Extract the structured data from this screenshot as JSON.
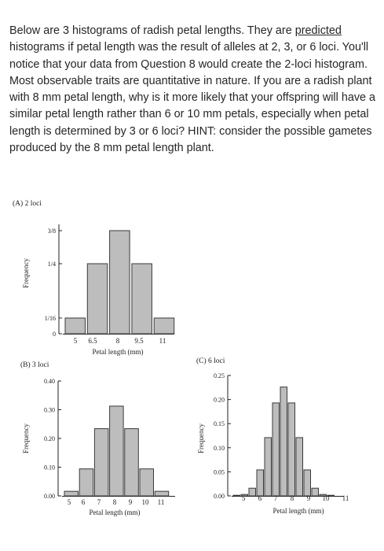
{
  "question": {
    "before": "Below are 3 histograms of radish petal lengths. They are ",
    "underlined": "predicted",
    "after": " histograms if petal length was the result of alleles at 2, 3, or 6 loci. You'll notice that your data from Question 8 would create the 2-loci histogram. Most observable traits are quantitative in nature. If you are a radish plant with 8 mm petal length, why is it more likely that your offspring will have a similar petal length rather than 6 or 10 mm petals, especially when petal length is determined by 3 or 6 loci? HINT: consider the possible gametes produced by the 8 mm petal length plant."
  },
  "chart_data": [
    {
      "type": "bar",
      "title": "(A) 2 loci",
      "ylabel": "Frequency",
      "xlabel": "Petal length (mm)",
      "x": [
        5,
        6.5,
        8,
        9.5,
        11
      ],
      "values": [
        0.0625,
        0.25,
        0.375,
        0.25,
        0.0625
      ],
      "xticks": [
        "5",
        "6.5",
        "8",
        "9.5",
        "11"
      ],
      "yticks": [
        {
          "value": 0,
          "label": "0"
        },
        {
          "value": 0.0625,
          "label": "1/16"
        },
        {
          "value": 0.25,
          "label": "1/4"
        },
        {
          "value": 0.375,
          "label": "3/8"
        }
      ],
      "ylim": [
        0,
        0.4
      ]
    },
    {
      "type": "bar",
      "title": "(B) 3 loci",
      "ylabel": "Frequency",
      "xlabel": "Petal length (mm)",
      "x": [
        5,
        6,
        7,
        8,
        9,
        10,
        11
      ],
      "values": [
        0.016,
        0.094,
        0.234,
        0.3125,
        0.234,
        0.094,
        0.016
      ],
      "xticks": [
        "5",
        "6",
        "7",
        "8",
        "9",
        "10",
        "11"
      ],
      "yticks": [
        {
          "value": 0,
          "label": "0.00"
        },
        {
          "value": 0.1,
          "label": "0.10"
        },
        {
          "value": 0.2,
          "label": "0.20"
        },
        {
          "value": 0.3,
          "label": "0.30"
        },
        {
          "value": 0.4,
          "label": "0.40"
        }
      ],
      "ylim": [
        0,
        0.4
      ]
    },
    {
      "type": "bar",
      "title": "(C) 6 loci",
      "ylabel": "Frequency",
      "xlabel": "Petal length (mm)",
      "x": [
        5,
        5.5,
        6,
        6.5,
        7,
        7.5,
        8,
        8.5,
        9,
        9.5,
        10,
        10.5,
        11
      ],
      "values": [
        0.0002,
        0.003,
        0.016,
        0.054,
        0.121,
        0.193,
        0.226,
        0.193,
        0.121,
        0.054,
        0.016,
        0.003,
        0.0002
      ],
      "xticks": [
        "5",
        "6",
        "7",
        "8",
        "9",
        "10",
        "11"
      ],
      "yticks": [
        {
          "value": 0,
          "label": "0.00"
        },
        {
          "value": 0.05,
          "label": "0.05"
        },
        {
          "value": 0.1,
          "label": "0.10"
        },
        {
          "value": 0.15,
          "label": "0.15"
        },
        {
          "value": 0.2,
          "label": "0.20"
        },
        {
          "value": 0.25,
          "label": "0.25"
        }
      ],
      "ylim": [
        0,
        0.25
      ]
    }
  ]
}
